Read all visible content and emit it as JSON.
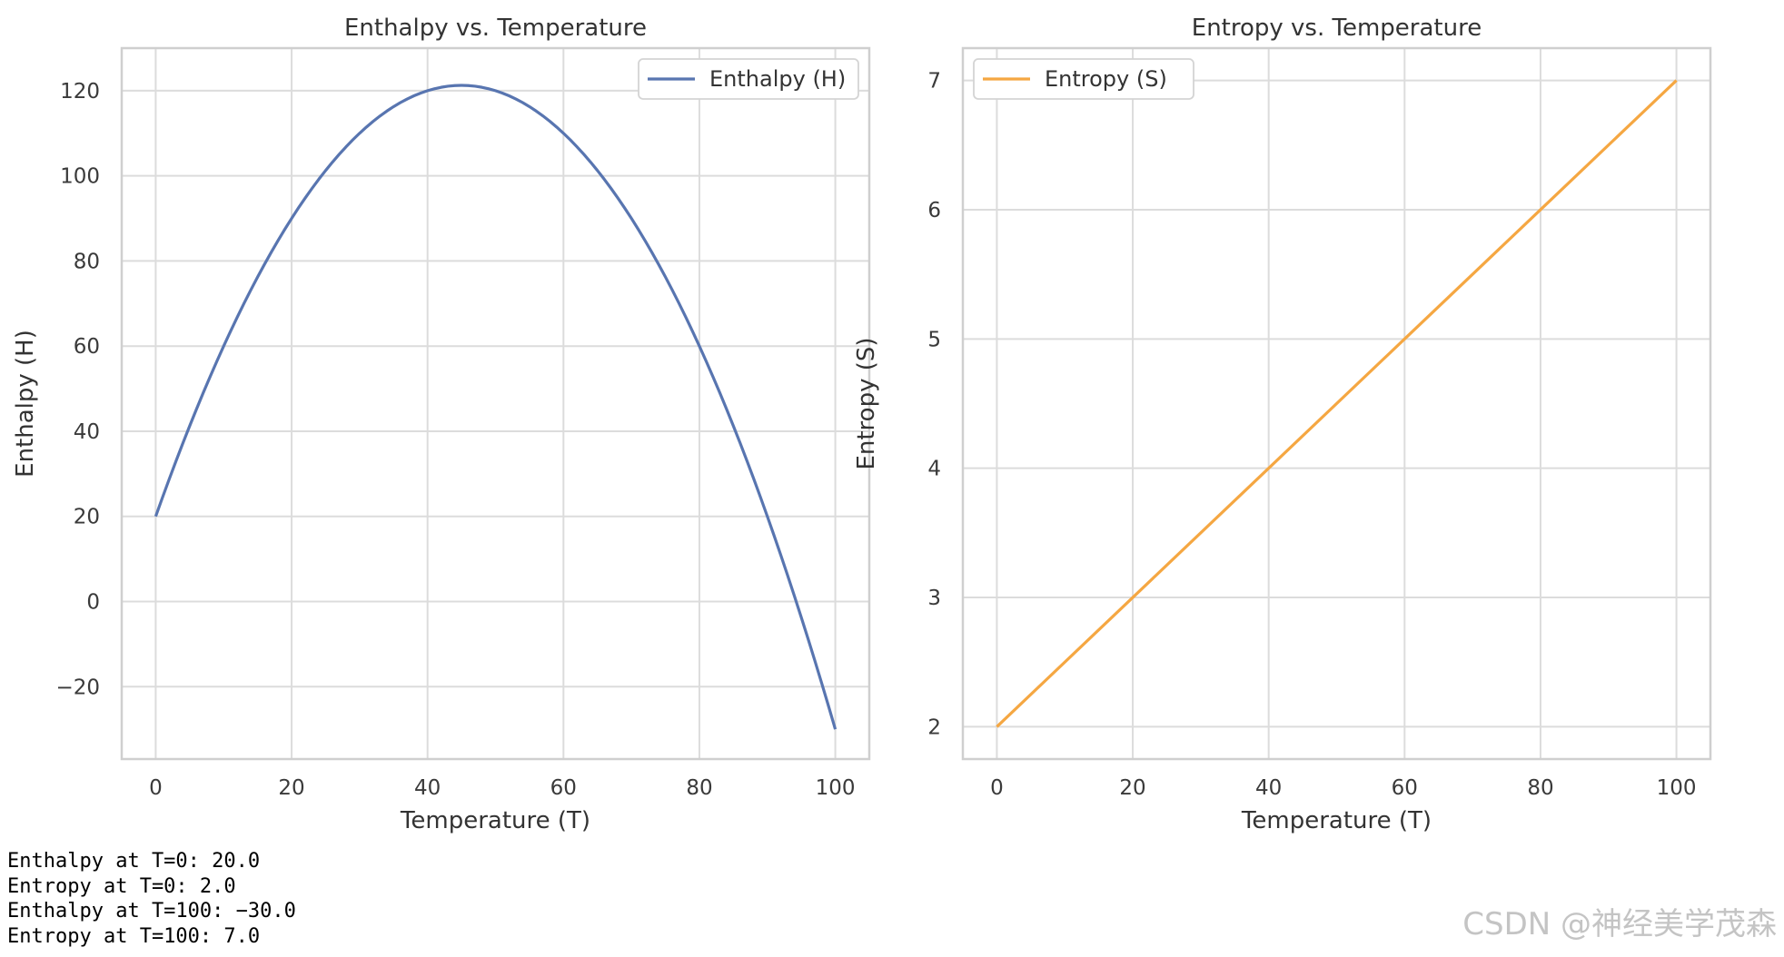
{
  "chart_data": [
    {
      "type": "line",
      "title": "Enthalpy vs. Temperature",
      "xlabel": "Temperature (T)",
      "ylabel": "Enthalpy (H)",
      "xlim": [
        -5,
        105
      ],
      "ylim": [
        -37,
        130
      ],
      "xticks": [
        0,
        20,
        40,
        60,
        80,
        100
      ],
      "yticks": [
        -20,
        0,
        20,
        40,
        60,
        80,
        100,
        120
      ],
      "ytick_labels": [
        "−20",
        "0",
        "20",
        "40",
        "60",
        "80",
        "100",
        "120"
      ],
      "grid": true,
      "legend_position": "top-right",
      "series": [
        {
          "name": "Enthalpy (H)",
          "color": "#5875b0",
          "formula": "20 + 4.5*T - 0.05*T^2",
          "x": [
            0,
            10,
            20,
            30,
            40,
            45,
            50,
            60,
            70,
            80,
            90,
            100
          ],
          "y": [
            20,
            60,
            90,
            110,
            120,
            121.25,
            120,
            110,
            90,
            60,
            20,
            -30
          ]
        }
      ]
    },
    {
      "type": "line",
      "title": "Entropy vs. Temperature",
      "xlabel": "Temperature (T)",
      "ylabel": "Entropy (S)",
      "xlim": [
        -5,
        105
      ],
      "ylim": [
        1.75,
        7.25
      ],
      "xticks": [
        0,
        20,
        40,
        60,
        80,
        100
      ],
      "yticks": [
        2,
        3,
        4,
        5,
        6,
        7
      ],
      "ytick_labels": [
        "2",
        "3",
        "4",
        "5",
        "6",
        "7"
      ],
      "grid": true,
      "legend_position": "top-left",
      "series": [
        {
          "name": "Entropy (S)",
          "color": "#f5a742",
          "x": [
            0,
            20,
            40,
            60,
            80,
            100
          ],
          "y": [
            2,
            3,
            4,
            5,
            6,
            7
          ]
        }
      ]
    }
  ],
  "console": {
    "lines": [
      "Enthalpy at T=0: 20.0",
      "Entropy at T=0: 2.0",
      "Enthalpy at T=100: −30.0",
      "Entropy at T=100: 7.0"
    ]
  },
  "watermark": "CSDN @神经美学茂森"
}
